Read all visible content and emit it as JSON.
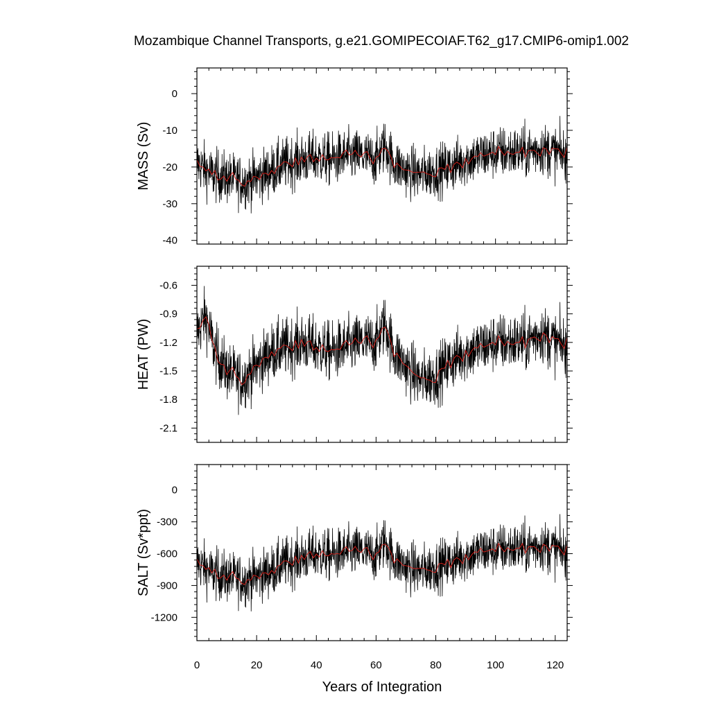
{
  "chart_data": {
    "type": "line",
    "title": "Mozambique Channel Transports, g.e21.GOMIPECOIAF.T62_g17.CMIP6-omip1.002",
    "xlabel": "Years of Integration",
    "xlim": [
      0,
      124
    ],
    "xticks": [
      "0",
      "20",
      "40",
      "60",
      "80",
      "100",
      "120"
    ],
    "series_colors": {
      "raw": "#000000",
      "smoothed": "#e0201a"
    },
    "panels": [
      {
        "ylabel": "MASS (Sv)",
        "ylim": [
          -41,
          7
        ],
        "yticks": [
          0,
          -10,
          -20,
          -30,
          -40
        ],
        "ytick_labels": [
          "0",
          "-10",
          "-20",
          "-30",
          "-40"
        ],
        "smoothed_trend": [
          [
            0,
            -19
          ],
          [
            5,
            -22
          ],
          [
            10,
            -23
          ],
          [
            16,
            -24
          ],
          [
            20,
            -23
          ],
          [
            25,
            -21
          ],
          [
            30,
            -19
          ],
          [
            35,
            -18
          ],
          [
            40,
            -17.5
          ],
          [
            45,
            -18
          ],
          [
            50,
            -17
          ],
          [
            55,
            -17
          ],
          [
            60,
            -18
          ],
          [
            63,
            -14
          ],
          [
            66,
            -19
          ],
          [
            70,
            -21
          ],
          [
            75,
            -22
          ],
          [
            80,
            -21
          ],
          [
            85,
            -20
          ],
          [
            90,
            -18
          ],
          [
            95,
            -17
          ],
          [
            100,
            -16
          ],
          [
            105,
            -16
          ],
          [
            110,
            -16
          ],
          [
            115,
            -15
          ],
          [
            120,
            -16
          ],
          [
            124,
            -17
          ]
        ],
        "noise_amplitude": 6.5
      },
      {
        "ylabel": "HEAT (PW)",
        "ylim": [
          -2.25,
          -0.4
        ],
        "yticks": [
          -0.6,
          -0.9,
          -1.2,
          -1.5,
          -1.8,
          -2.1
        ],
        "ytick_labels": [
          "-0.6",
          "-0.9",
          "-1.2",
          "-1.5",
          "-1.8",
          "-2.1"
        ],
        "smoothed_trend": [
          [
            0,
            -1.1
          ],
          [
            3,
            -0.92
          ],
          [
            6,
            -1.3
          ],
          [
            10,
            -1.5
          ],
          [
            15,
            -1.6
          ],
          [
            20,
            -1.45
          ],
          [
            25,
            -1.3
          ],
          [
            30,
            -1.25
          ],
          [
            35,
            -1.2
          ],
          [
            40,
            -1.25
          ],
          [
            45,
            -1.3
          ],
          [
            50,
            -1.25
          ],
          [
            55,
            -1.2
          ],
          [
            60,
            -1.2
          ],
          [
            63,
            -1.0
          ],
          [
            66,
            -1.3
          ],
          [
            70,
            -1.45
          ],
          [
            75,
            -1.6
          ],
          [
            80,
            -1.55
          ],
          [
            85,
            -1.4
          ],
          [
            90,
            -1.3
          ],
          [
            95,
            -1.25
          ],
          [
            100,
            -1.2
          ],
          [
            105,
            -1.2
          ],
          [
            110,
            -1.2
          ],
          [
            115,
            -1.1
          ],
          [
            120,
            -1.2
          ],
          [
            124,
            -1.25
          ]
        ],
        "noise_amplitude": 0.28
      },
      {
        "ylabel": "SALT (Sv*ppt)",
        "ylim": [
          -1420,
          240
        ],
        "yticks": [
          0,
          -300,
          -600,
          -900,
          -1200
        ],
        "ytick_labels": [
          "0",
          "-300",
          "-600",
          "-900",
          "-1200"
        ],
        "smoothed_trend": [
          [
            0,
            -680
          ],
          [
            5,
            -780
          ],
          [
            10,
            -820
          ],
          [
            16,
            -850
          ],
          [
            20,
            -820
          ],
          [
            25,
            -760
          ],
          [
            30,
            -680
          ],
          [
            35,
            -640
          ],
          [
            40,
            -600
          ],
          [
            45,
            -620
          ],
          [
            50,
            -590
          ],
          [
            55,
            -580
          ],
          [
            60,
            -620
          ],
          [
            63,
            -480
          ],
          [
            66,
            -650
          ],
          [
            70,
            -720
          ],
          [
            75,
            -760
          ],
          [
            80,
            -720
          ],
          [
            85,
            -680
          ],
          [
            90,
            -620
          ],
          [
            95,
            -580
          ],
          [
            100,
            -560
          ],
          [
            105,
            -550
          ],
          [
            110,
            -550
          ],
          [
            115,
            -520
          ],
          [
            120,
            -560
          ],
          [
            124,
            -600
          ]
        ],
        "noise_amplitude": 220
      }
    ]
  }
}
